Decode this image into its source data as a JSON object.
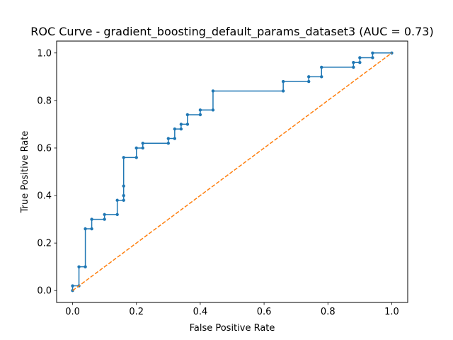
{
  "chart_data": {
    "type": "line",
    "title": "ROC Curve - gradient_boosting_default_params_dataset3 (AUC = 0.73)",
    "xlabel": "False Positive Rate",
    "ylabel": "True Positive Rate",
    "xlim": [
      -0.05,
      1.05
    ],
    "ylim": [
      -0.05,
      1.05
    ],
    "xticks": [
      "0.0",
      "0.2",
      "0.4",
      "0.6",
      "0.8",
      "1.0"
    ],
    "yticks": [
      "0.0",
      "0.2",
      "0.4",
      "0.6",
      "0.8",
      "1.0"
    ],
    "grid": false,
    "series": [
      {
        "style": "step line with point markers",
        "color": "#1f77b4",
        "x": [
          0.0,
          0.0,
          0.02,
          0.02,
          0.04,
          0.04,
          0.06,
          0.06,
          0.1,
          0.1,
          0.14,
          0.14,
          0.16,
          0.16,
          0.16,
          0.16,
          0.2,
          0.2,
          0.22,
          0.22,
          0.3,
          0.3,
          0.32,
          0.32,
          0.34,
          0.34,
          0.36,
          0.36,
          0.4,
          0.4,
          0.44,
          0.44,
          0.66,
          0.66,
          0.74,
          0.74,
          0.78,
          0.78,
          0.88,
          0.88,
          0.9,
          0.9,
          0.94,
          0.94,
          1.0
        ],
        "y": [
          0.0,
          0.02,
          0.02,
          0.1,
          0.1,
          0.26,
          0.26,
          0.3,
          0.3,
          0.32,
          0.32,
          0.38,
          0.38,
          0.4,
          0.44,
          0.56,
          0.56,
          0.6,
          0.6,
          0.62,
          0.62,
          0.64,
          0.64,
          0.68,
          0.68,
          0.7,
          0.7,
          0.74,
          0.74,
          0.76,
          0.76,
          0.84,
          0.84,
          0.88,
          0.88,
          0.9,
          0.9,
          0.94,
          0.94,
          0.96,
          0.96,
          0.98,
          0.98,
          1.0,
          1.0
        ]
      },
      {
        "style": "dashed line",
        "color": "#ff7f0e",
        "x": [
          0.0,
          1.0
        ],
        "y": [
          0.0,
          1.0
        ]
      }
    ]
  }
}
